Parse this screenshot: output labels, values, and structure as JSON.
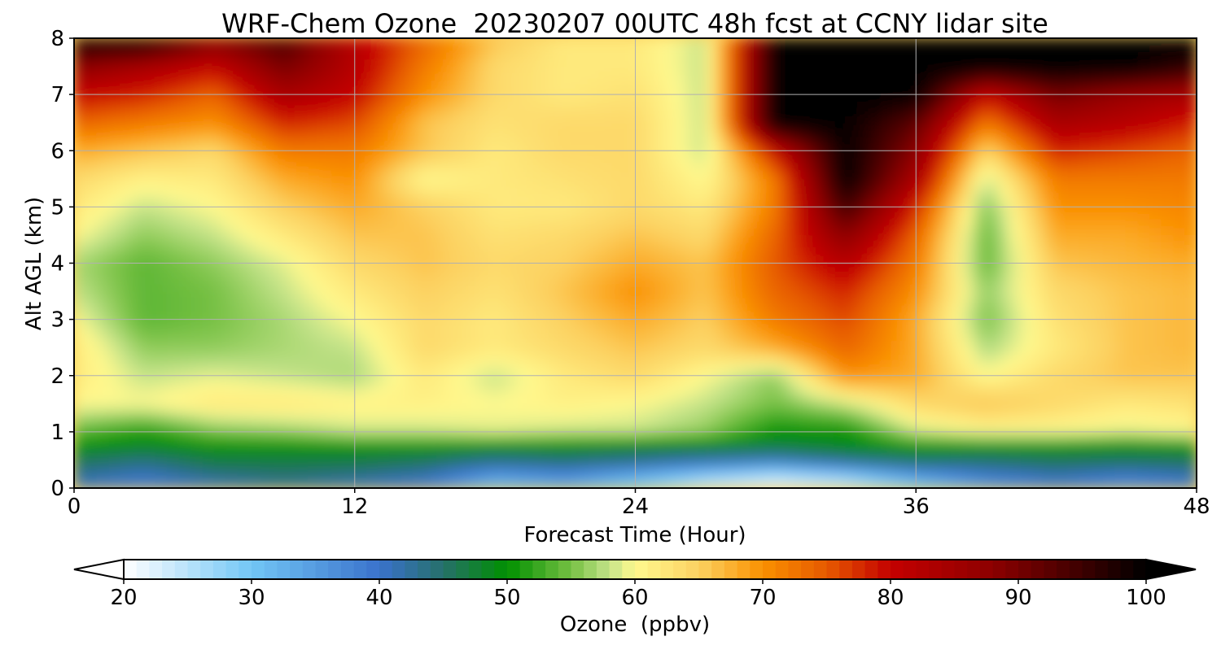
{
  "chart_data": {
    "type": "heatmap",
    "title": "WRF-Chem Ozone  20230207 00UTC 48h fcst at CCNY lidar site",
    "xlabel": "Forecast Time (Hour)",
    "ylabel": "Alt AGL (km)",
    "xlim": [
      0,
      48
    ],
    "ylim": [
      0,
      8
    ],
    "x_ticks": [
      0,
      12,
      24,
      36,
      48
    ],
    "y_ticks": [
      0,
      1,
      2,
      3,
      4,
      5,
      6,
      7,
      8
    ],
    "grid": true,
    "x_hours": [
      0,
      3,
      6,
      9,
      12,
      15,
      18,
      21,
      24,
      27,
      30,
      33,
      36,
      39,
      42,
      45,
      48
    ],
    "y_altitudes_km": [
      0,
      0.25,
      0.5,
      0.75,
      1,
      1.5,
      2,
      2.5,
      3,
      3.5,
      4,
      4.5,
      5,
      5.5,
      6,
      6.5,
      7,
      7.5,
      8
    ],
    "z_ozone_ppbv": [
      [
        40,
        38,
        40,
        42,
        40,
        38,
        30,
        32,
        28,
        22,
        20,
        22,
        28,
        34,
        38,
        36,
        38
      ],
      [
        43,
        41,
        44,
        45,
        44,
        42,
        36,
        38,
        34,
        30,
        27,
        30,
        36,
        40,
        42,
        40,
        42
      ],
      [
        46,
        44,
        47,
        47,
        47,
        46,
        44,
        45,
        44,
        42,
        40,
        44,
        46,
        45,
        46,
        46,
        46
      ],
      [
        50,
        49,
        50,
        50,
        50,
        50,
        49,
        49,
        48,
        48,
        48,
        49,
        50,
        50,
        50,
        49,
        50
      ],
      [
        54,
        51,
        55,
        56,
        58,
        58,
        59,
        58,
        58,
        56,
        50,
        50,
        58,
        60,
        60,
        59,
        60
      ],
      [
        60,
        60,
        62,
        62,
        61,
        61,
        60,
        61,
        60,
        58,
        55,
        58,
        64,
        66,
        64,
        62,
        63
      ],
      [
        62,
        58,
        59,
        58,
        57,
        62,
        58,
        62,
        64,
        60,
        56,
        70,
        68,
        60,
        64,
        66,
        66
      ],
      [
        62,
        56,
        56,
        57,
        58,
        64,
        62,
        64,
        66,
        64,
        68,
        74,
        68,
        57,
        62,
        66,
        67
      ],
      [
        60,
        54,
        55,
        57,
        60,
        64,
        62,
        65,
        68,
        65,
        72,
        76,
        68,
        55,
        63,
        66,
        67
      ],
      [
        58,
        54,
        55,
        58,
        62,
        65,
        63,
        66,
        70,
        66,
        74,
        78,
        70,
        56,
        64,
        66,
        67
      ],
      [
        57,
        54,
        56,
        59,
        64,
        66,
        64,
        65,
        68,
        66,
        75,
        82,
        72,
        54,
        66,
        67,
        68
      ],
      [
        60,
        56,
        58,
        62,
        66,
        66,
        63,
        64,
        66,
        64,
        74,
        88,
        74,
        54,
        68,
        68,
        70
      ],
      [
        62,
        58,
        60,
        65,
        68,
        65,
        62,
        62,
        64,
        62,
        72,
        95,
        78,
        55,
        70,
        70,
        71
      ],
      [
        64,
        61,
        62,
        68,
        70,
        60,
        62,
        63,
        64,
        60,
        72,
        100,
        84,
        58,
        72,
        72,
        72
      ],
      [
        68,
        66,
        64,
        72,
        72,
        66,
        62,
        64,
        64,
        58,
        80,
        100,
        88,
        64,
        78,
        76,
        74
      ],
      [
        74,
        72,
        70,
        78,
        76,
        66,
        63,
        64,
        64,
        58,
        100,
        100,
        92,
        72,
        84,
        82,
        78
      ],
      [
        80,
        78,
        74,
        84,
        80,
        70,
        64,
        62,
        63,
        58,
        100,
        100,
        100,
        80,
        90,
        86,
        84
      ],
      [
        88,
        84,
        80,
        90,
        82,
        72,
        64,
        62,
        62,
        58,
        100,
        100,
        100,
        100,
        100,
        100,
        96
      ],
      [
        100,
        100,
        90,
        94,
        82,
        74,
        66,
        62,
        62,
        58,
        100,
        100,
        100,
        100,
        100,
        100,
        100
      ]
    ],
    "colorbar": {
      "label": "Ozone  (ppbv)",
      "min": 20,
      "max": 100,
      "extend": "both",
      "ticks": [
        20,
        30,
        40,
        50,
        60,
        70,
        80,
        90,
        100
      ],
      "color_stops": [
        {
          "value": 20,
          "color": "#ffffff"
        },
        {
          "value": 30,
          "color": "#72c6f5"
        },
        {
          "value": 40,
          "color": "#3a72cc"
        },
        {
          "value": 45,
          "color": "#26706a"
        },
        {
          "value": 50,
          "color": "#009000"
        },
        {
          "value": 55,
          "color": "#76c043"
        },
        {
          "value": 58,
          "color": "#c4e38a"
        },
        {
          "value": 60,
          "color": "#fff98e"
        },
        {
          "value": 65,
          "color": "#fcd161"
        },
        {
          "value": 70,
          "color": "#fa9000"
        },
        {
          "value": 75,
          "color": "#e65a00"
        },
        {
          "value": 80,
          "color": "#c40000"
        },
        {
          "value": 88,
          "color": "#8c0000"
        },
        {
          "value": 95,
          "color": "#3c0000"
        },
        {
          "value": 100,
          "color": "#000000"
        }
      ]
    }
  }
}
